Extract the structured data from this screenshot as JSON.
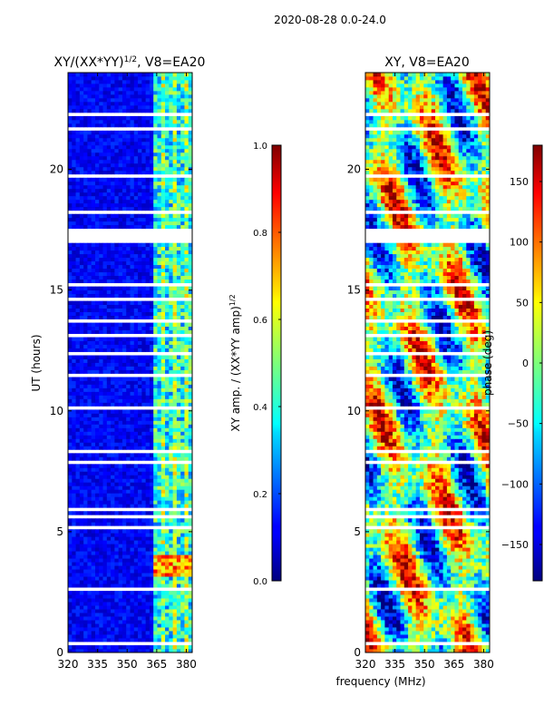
{
  "suptitle": "2020-08-28 0.0-24.0",
  "chart_data": [
    {
      "type": "heatmap",
      "title": "XY/(XX*YY)^{1/2}, V8=EA20",
      "title_parts": {
        "main": "XY/(XX*YY)",
        "sup": "1/2",
        "rest": ", V8=EA20"
      },
      "xlabel": "",
      "ylabel": "UT (hours)",
      "xlim": [
        320,
        383
      ],
      "ylim": [
        0,
        24
      ],
      "xticks": [
        320,
        335,
        350,
        365,
        380
      ],
      "yticks": [
        0,
        5,
        10,
        15,
        20
      ],
      "colorbar": {
        "label": "XY amp. / (XX*YY amp)^{1/2}",
        "label_parts": {
          "main": "XY amp. / (XX*YY amp)",
          "sup": "1/2"
        },
        "range": [
          0.0,
          1.0
        ],
        "ticks": [
          "0.0",
          "0.2",
          "0.4",
          "0.6",
          "0.8",
          "1.0"
        ],
        "tick_values": [
          0.0,
          0.2,
          0.4,
          0.6,
          0.8,
          1.0
        ],
        "colormap": "jet"
      }
    },
    {
      "type": "heatmap",
      "title": "XY, V8=EA20",
      "xlabel": "frequency (MHz)",
      "ylabel": "",
      "xlim": [
        320,
        383
      ],
      "ylim": [
        0,
        24
      ],
      "xticks": [
        320,
        335,
        350,
        365,
        380
      ],
      "yticks": [
        0,
        5,
        10,
        15,
        20
      ],
      "colorbar": {
        "label": "phase (deg)",
        "range": [
          -180,
          180
        ],
        "ticks": [
          "−150",
          "−100",
          "−50",
          "0",
          "50",
          "100",
          "150"
        ],
        "tick_values": [
          -150,
          -100,
          -50,
          0,
          50,
          100,
          150
        ],
        "colormap": "jet"
      }
    }
  ]
}
